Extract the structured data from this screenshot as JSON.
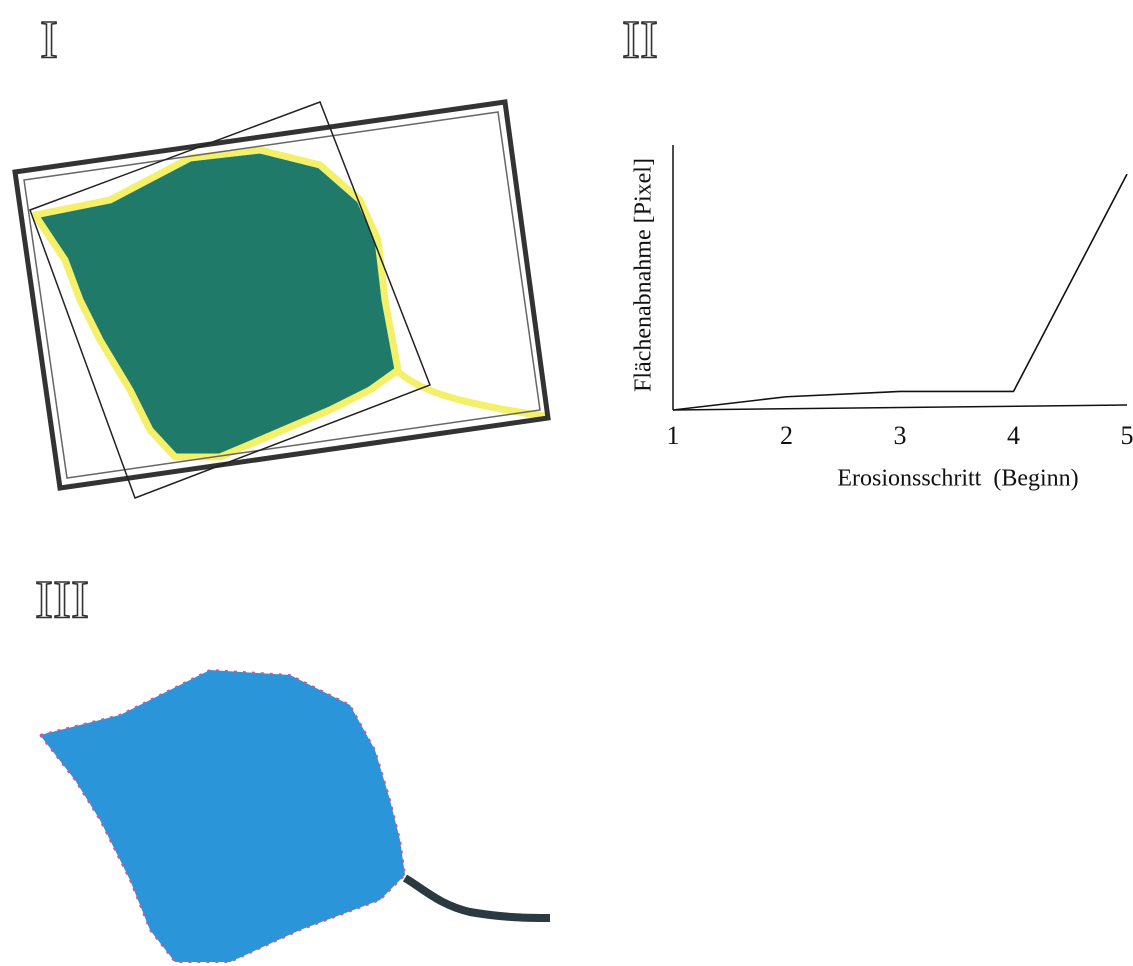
{
  "panel_labels": [
    "I",
    "II",
    "III"
  ],
  "chart_data": {
    "type": "line",
    "x": [
      1,
      2,
      3,
      4,
      5
    ],
    "values": [
      0,
      5,
      7,
      7,
      89
    ],
    "color": "#111111",
    "xlim": [
      1,
      5
    ],
    "xticks": [
      1,
      2,
      3,
      4,
      5
    ],
    "ylim": [
      0,
      100
    ],
    "x_label": "Erosionsschritt  (Beginn)",
    "y_label": "Flächenabnahme [Pixel]"
  }
}
